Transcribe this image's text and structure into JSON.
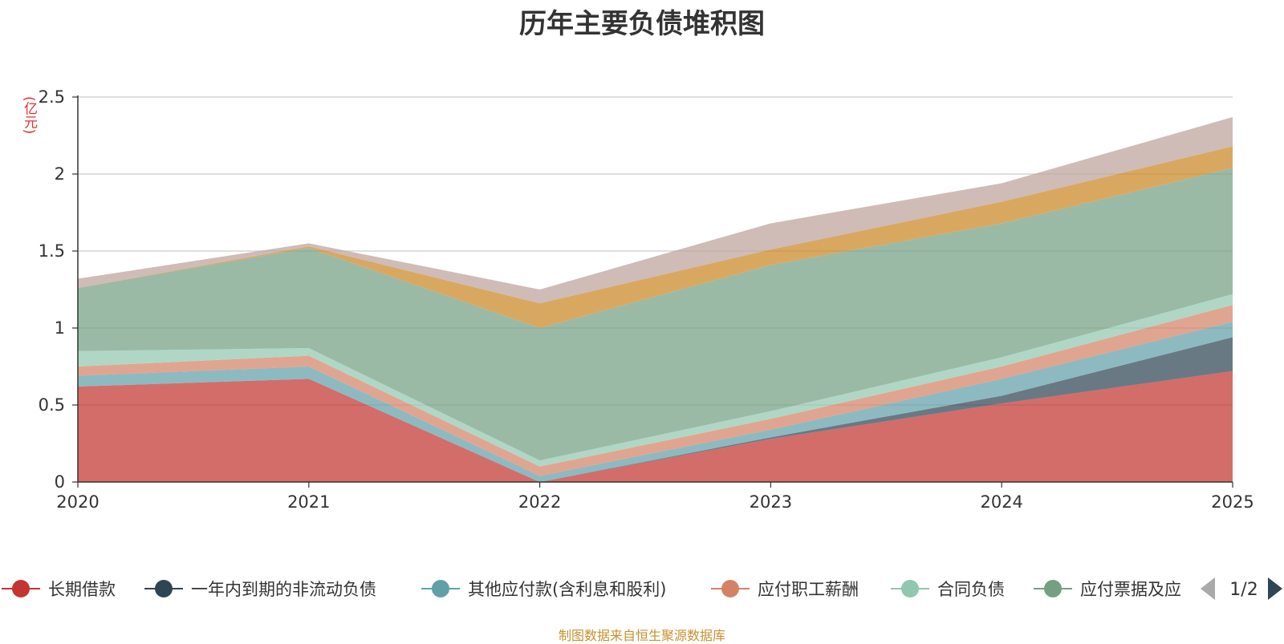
{
  "title": "历年主要负债堆积图",
  "unit": "(亿元)",
  "source_note": "制图数据来自恒生聚源数据库",
  "legend": {
    "page_indicator": "1/2",
    "visible_entries": [
      "长期借款",
      "一年内到期的非流动负债",
      "其他应付款(含利息和股利)",
      "应付职工薪酬",
      "合同负债",
      "应付票据及应"
    ]
  },
  "chart_data": {
    "type": "area",
    "stacked": true,
    "x": [
      "2020",
      "2021",
      "2022",
      "2023",
      "2024",
      "2025"
    ],
    "ylim": [
      0,
      2.5
    ],
    "yticks": [
      "0",
      "0.5",
      "1",
      "1.5",
      "2",
      "2.5"
    ],
    "grid": true,
    "legend_position": "bottom",
    "series": [
      {
        "name": "长期借款",
        "color": "#c23531",
        "values": [
          0.62,
          0.67,
          0.0,
          0.28,
          0.51,
          0.72
        ]
      },
      {
        "name": "一年内到期的非流动负债",
        "color": "#2f4554",
        "values": [
          0.0,
          0.0,
          0.0,
          0.01,
          0.05,
          0.22
        ]
      },
      {
        "name": "其他应付款(含利息和股利)",
        "color": "#61a0a8",
        "values": [
          0.07,
          0.08,
          0.04,
          0.05,
          0.11,
          0.1
        ]
      },
      {
        "name": "应付职工薪酬",
        "color": "#d48265",
        "values": [
          0.06,
          0.07,
          0.06,
          0.07,
          0.08,
          0.11
        ]
      },
      {
        "name": "合同负债",
        "color": "#91c7ae",
        "values": [
          0.1,
          0.05,
          0.04,
          0.05,
          0.06,
          0.07
        ]
      },
      {
        "name": "应付票据及应付账款",
        "color": "#749f83",
        "values": [
          0.41,
          0.65,
          0.86,
          0.95,
          0.87,
          0.82
        ]
      },
      {
        "name": "",
        "color": "#ca8622",
        "values": [
          0.0,
          0.01,
          0.16,
          0.1,
          0.14,
          0.14
        ]
      },
      {
        "name": "",
        "color": "#bda29a",
        "values": [
          0.06,
          0.02,
          0.09,
          0.17,
          0.12,
          0.19
        ]
      }
    ]
  }
}
